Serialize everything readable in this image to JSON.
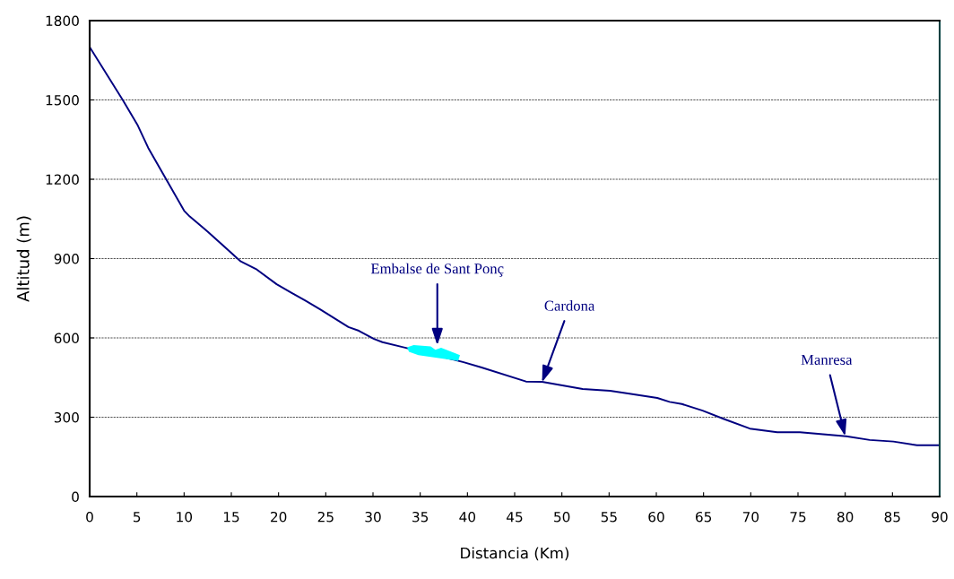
{
  "chart_data": {
    "type": "line",
    "xlabel": "Distancia (Km)",
    "ylabel": "Altitud (m)",
    "x": [
      0,
      3.5,
      5.1,
      6.2,
      8.1,
      10,
      10.6,
      12.5,
      16,
      17.6,
      19.8,
      21.4,
      22.8,
      24.4,
      27.4,
      28.5,
      30.1,
      31,
      33.2,
      39.6,
      41.5,
      46.2,
      47.9,
      52.2,
      55.1,
      57,
      60.1,
      61.4,
      62.7,
      64.9,
      67.1,
      69.9,
      72.8,
      75.2,
      80.1,
      82.6,
      85.1,
      87.6,
      90
    ],
    "series": [
      {
        "color": "#000080",
        "values": [
          1700,
          1500,
          1403,
          1319,
          1200,
          1081,
          1059,
          1002,
          889,
          861,
          803,
          770,
          742,
          708,
          641,
          627,
          596,
          584,
          565,
          508,
          488,
          435,
          434,
          407,
          400,
          390,
          373,
          358,
          350,
          325,
          294,
          257,
          243,
          243,
          228,
          214,
          208,
          194,
          194
        ]
      }
    ],
    "annotations": [
      "Embalse de Sant Ponç",
      {
        "text": "Cardona",
        "x": 47.9,
        "y": 432
      },
      {
        "text": "Manresa",
        "x": 80,
        "y": 228
      }
    ],
    "xlim": [
      0,
      90
    ],
    "xticks": [
      0,
      5,
      10,
      15,
      20,
      25,
      30,
      35,
      40,
      45,
      50,
      55,
      60,
      65,
      70,
      75,
      80,
      85,
      90
    ],
    "ylim": [
      0,
      1800
    ],
    "yticks": [
      0,
      300,
      600,
      900,
      1200,
      1500,
      1800
    ],
    "grid": "y",
    "line_style": "solid",
    "marker": "none"
  }
}
